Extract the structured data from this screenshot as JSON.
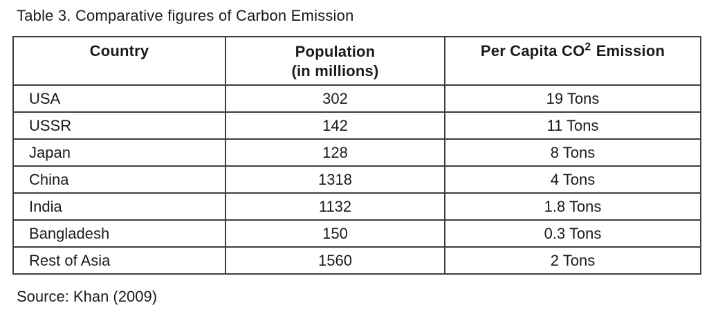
{
  "title": "Table 3. Comparative figures of Carbon Emission",
  "source_note": "Source: Khan (2009)",
  "colors": {
    "background": "#ffffff",
    "text": "#1b1b1b",
    "border": "#3c3c3c",
    "header_separator": "#6a6a6a"
  },
  "table": {
    "headers": {
      "country": "Country",
      "population_line1": "Population",
      "population_line2": "(in millions)",
      "emission_prefix": "Per Capita CO",
      "emission_sup": "2",
      "emission_suffix": "Emission"
    },
    "rows": [
      {
        "country": "USA",
        "population": "302",
        "emission": "19 Tons"
      },
      {
        "country": "USSR",
        "population": "142",
        "emission": "11 Tons"
      },
      {
        "country": "Japan",
        "population": "128",
        "emission": "8 Tons"
      },
      {
        "country": "China",
        "population": "1318",
        "emission": "4 Tons"
      },
      {
        "country": "India",
        "population": "1132",
        "emission": "1.8 Tons"
      },
      {
        "country": "Bangladesh",
        "population": "150",
        "emission": "0.3 Tons"
      },
      {
        "country": "Rest of Asia",
        "population": "1560",
        "emission": "2 Tons"
      }
    ]
  },
  "chart_data": {
    "type": "table",
    "title": "Table 3. Comparative figures of Carbon Emission",
    "columns": [
      "Country",
      "Population (in millions)",
      "Per Capita CO2 Emission"
    ],
    "rows": [
      [
        "USA",
        302,
        "19 Tons"
      ],
      [
        "USSR",
        142,
        "11 Tons"
      ],
      [
        "Japan",
        128,
        "8 Tons"
      ],
      [
        "China",
        1318,
        "4 Tons"
      ],
      [
        "India",
        1132,
        "1.8 Tons"
      ],
      [
        "Bangladesh",
        150,
        "0.3 Tons"
      ],
      [
        "Rest of Asia",
        1560,
        "2 Tons"
      ]
    ],
    "source": "Khan (2009)"
  }
}
